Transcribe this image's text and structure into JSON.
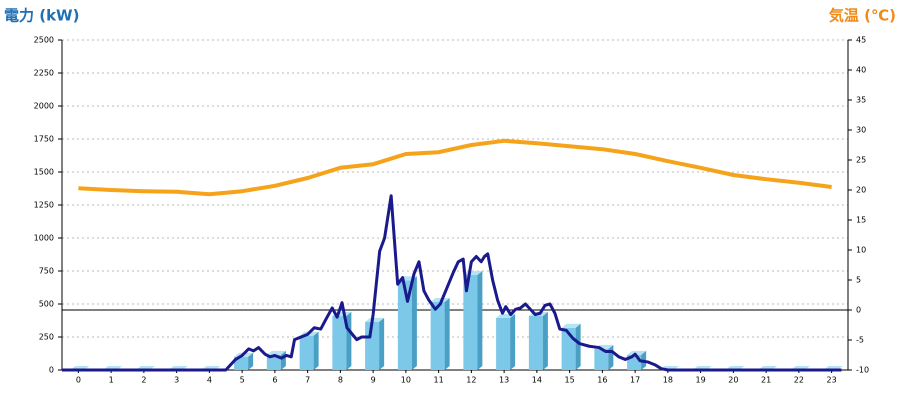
{
  "chart_data": {
    "type": "combo",
    "y_title": "電力 (kW)",
    "y2_title": "気温 (℃)",
    "categories": [
      "0",
      "1",
      "2",
      "3",
      "4",
      "5",
      "6",
      "7",
      "8",
      "9",
      "10",
      "11",
      "12",
      "13",
      "14",
      "15",
      "16",
      "17",
      "18",
      "19",
      "20",
      "21",
      "22",
      "23"
    ],
    "xlim": [
      -0.5,
      23.5
    ],
    "ylim": [
      0,
      2500
    ],
    "yticks": [
      0,
      250,
      500,
      750,
      1000,
      1250,
      1500,
      1750,
      2000,
      2250,
      2500
    ],
    "y2lim": [
      -10,
      45
    ],
    "y2ticks": [
      -10,
      -5,
      0,
      5,
      10,
      15,
      20,
      25,
      30,
      35,
      40,
      45
    ],
    "grid": true,
    "series": [
      {
        "kind": "bar",
        "color": "#7cc8e8",
        "values": [
          0,
          0,
          0,
          0,
          0,
          100,
          115,
          260,
          410,
          365,
          680,
          515,
          720,
          395,
          410,
          320,
          160,
          115,
          0,
          0,
          0,
          0,
          0,
          0
        ]
      },
      {
        "kind": "line",
        "axis": "y2",
        "color": "#f5a31a",
        "values": [
          20.3,
          20,
          19.8,
          19.7,
          19.3,
          19.8,
          20.7,
          22,
          23.7,
          24.3,
          26,
          26.3,
          27.5,
          28.2,
          27.8,
          27.3,
          26.8,
          26,
          24.8,
          23.7,
          22.5,
          21.8,
          21.2,
          20.5
        ]
      },
      {
        "kind": "line",
        "color": "#1a1a8c",
        "x": [
          -0.5,
          4.5,
          4.8,
          5.0,
          5.2,
          5.35,
          5.5,
          5.7,
          5.85,
          6.0,
          6.2,
          6.35,
          6.5,
          6.6,
          6.8,
          7.0,
          7.2,
          7.4,
          7.55,
          7.75,
          7.9,
          8.05,
          8.2,
          8.5,
          8.65,
          8.9,
          9.0,
          9.2,
          9.35,
          9.55,
          9.75,
          9.9,
          10.05,
          10.25,
          10.4,
          10.55,
          10.7,
          10.9,
          11.05,
          11.25,
          11.45,
          11.6,
          11.75,
          11.85,
          12.0,
          12.15,
          12.3,
          12.4,
          12.5,
          12.65,
          12.8,
          12.95,
          13.05,
          13.2,
          13.35,
          13.5,
          13.65,
          13.8,
          13.95,
          14.1,
          14.25,
          14.4,
          14.55,
          14.7,
          14.9,
          15.1,
          15.3,
          15.6,
          15.9,
          16.1,
          16.3,
          16.5,
          16.7,
          16.9,
          17.0,
          17.15,
          17.4,
          17.6,
          17.8,
          18.0,
          23.3
        ],
        "values": [
          0,
          0,
          80,
          110,
          160,
          145,
          170,
          120,
          100,
          110,
          90,
          110,
          100,
          230,
          250,
          270,
          320,
          310,
          380,
          470,
          400,
          510,
          320,
          230,
          250,
          250,
          420,
          900,
          1000,
          1320,
          650,
          700,
          520,
          730,
          820,
          600,
          530,
          460,
          500,
          620,
          740,
          820,
          840,
          600,
          820,
          860,
          820,
          860,
          880,
          680,
          530,
          430,
          480,
          420,
          460,
          470,
          500,
          460,
          420,
          430,
          490,
          500,
          430,
          310,
          300,
          240,
          200,
          180,
          170,
          140,
          140,
          100,
          80,
          100,
          120,
          70,
          60,
          40,
          10,
          0,
          0
        ]
      }
    ]
  }
}
